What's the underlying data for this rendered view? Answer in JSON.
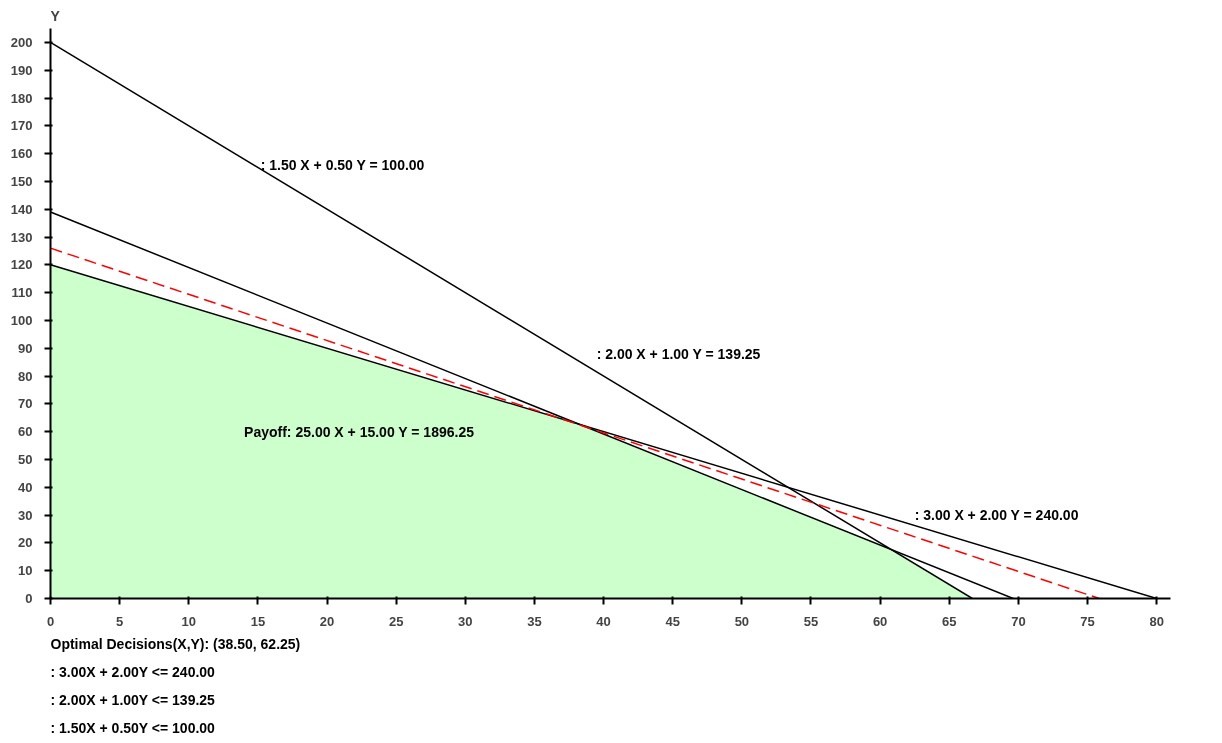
{
  "chart_data": {
    "type": "line",
    "ylabel": "Y",
    "xlim": [
      0,
      81
    ],
    "ylim": [
      0,
      205
    ],
    "xticks": [
      0,
      5,
      10,
      15,
      20,
      25,
      30,
      35,
      40,
      45,
      50,
      55,
      60,
      65,
      70,
      75,
      80
    ],
    "yticks": [
      0,
      10,
      20,
      30,
      40,
      50,
      60,
      70,
      80,
      90,
      100,
      110,
      120,
      130,
      140,
      150,
      160,
      170,
      180,
      190,
      200
    ],
    "grid": false,
    "series": [
      {
        "type": "area",
        "color": "#ccffcc",
        "x": [
          0,
          38.5,
          60.75,
          66.67
        ],
        "values": [
          120,
          62,
          18,
          0
        ]
      },
      {
        "color": "#000000",
        "x": [
          0,
          80
        ],
        "values": [
          120,
          0
        ]
      },
      {
        "color": "#000000",
        "x": [
          0,
          69.625
        ],
        "values": [
          139,
          0
        ]
      },
      {
        "color": "#000000",
        "x": [
          0,
          66.67
        ],
        "values": [
          200,
          0
        ]
      },
      {
        "color": "#ff0000",
        "line_style": "dashed",
        "x": [
          0,
          75.85
        ],
        "values": [
          126,
          0
        ]
      }
    ],
    "annotations": [
      ":  1.50 X +  0.50 Y = 100.00",
      ":  2.00 X +  1.00 Y = 139.25",
      "Payoff: 25.00 X + 15.00 Y = 1896.25",
      ":  3.00 X +  2.00 Y = 240.00",
      "Optimal Decisions(X,Y): (38.50, 62.25)",
      ":  3.00X +  2.00Y <= 240.00",
      ":  2.00X +  1.00Y <= 139.25",
      ":  1.50X +  0.50Y <= 100.00"
    ]
  }
}
